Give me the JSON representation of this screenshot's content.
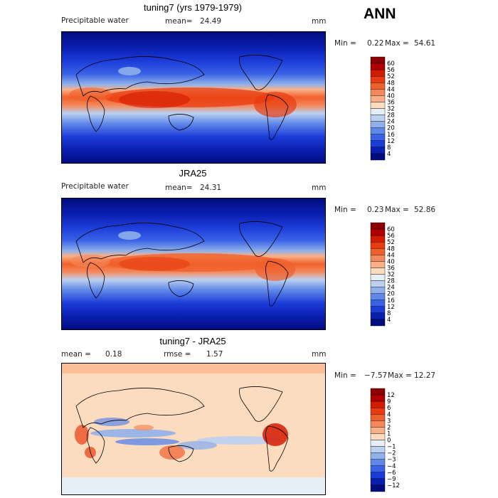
{
  "season": "ANN",
  "units": "mm",
  "panels": [
    {
      "title": "tuning7 (yrs 1979-1979)",
      "variable": "Precipitable water",
      "stat1_label": "mean=",
      "stat1_value": "24.49",
      "stat2_label": "",
      "stat2_value": "",
      "units": "mm",
      "min_label": "Min =",
      "min_value": "0.22",
      "max_label": "Max =",
      "max_value": "54.61",
      "levels": [
        "60",
        "56",
        "52",
        "48",
        "44",
        "40",
        "36",
        "32",
        "28",
        "24",
        "20",
        "16",
        "12",
        "8",
        "4"
      ],
      "colors": [
        "#8b0000",
        "#b10000",
        "#d51a00",
        "#e83c10",
        "#f0602c",
        "#f5885a",
        "#f9b088",
        "#fcdcbf",
        "#e6eef8",
        "#bcd0f0",
        "#8fb0ea",
        "#5f88e8",
        "#3a62e6",
        "#1c3cd8",
        "#0a1fb0",
        "#000c80"
      ]
    },
    {
      "title": "JRA25",
      "variable": "Precipitable water",
      "stat1_label": "mean=",
      "stat1_value": "24.31",
      "stat2_label": "",
      "stat2_value": "",
      "units": "mm",
      "min_label": "Min =",
      "min_value": "0.23",
      "max_label": "Max =",
      "max_value": "52.86",
      "levels": [
        "60",
        "56",
        "52",
        "48",
        "44",
        "40",
        "36",
        "32",
        "28",
        "24",
        "20",
        "16",
        "12",
        "8",
        "4"
      ],
      "colors": [
        "#8b0000",
        "#b10000",
        "#d51a00",
        "#e83c10",
        "#f0602c",
        "#f5885a",
        "#f9b088",
        "#fcdcbf",
        "#e6eef8",
        "#bcd0f0",
        "#8fb0ea",
        "#5f88e8",
        "#3a62e6",
        "#1c3cd8",
        "#0a1fb0",
        "#000c80"
      ]
    },
    {
      "title": "tuning7 - JRA25",
      "variable": "",
      "stat1_label": "mean =",
      "stat1_value": "0.18",
      "stat2_label": "rmse =",
      "stat2_value": "1.57",
      "units": "mm",
      "min_label": "Min =",
      "min_value": "−7.57",
      "max_label": "Max =",
      "max_value": "12.27",
      "levels": [
        "12",
        "9",
        "6",
        "4",
        "3",
        "2",
        "1",
        "0",
        "−1",
        "−2",
        "−3",
        "−4",
        "−6",
        "−9",
        "−12"
      ],
      "colors": [
        "#8b0000",
        "#b10000",
        "#d51a00",
        "#e83c10",
        "#f0602c",
        "#f5885a",
        "#f9b088",
        "#fcdcbf",
        "#e6eef8",
        "#bcd0f0",
        "#8fb0ea",
        "#5f88e8",
        "#3a62e6",
        "#1c3cd8",
        "#0a1fb0",
        "#000c80"
      ]
    }
  ]
}
